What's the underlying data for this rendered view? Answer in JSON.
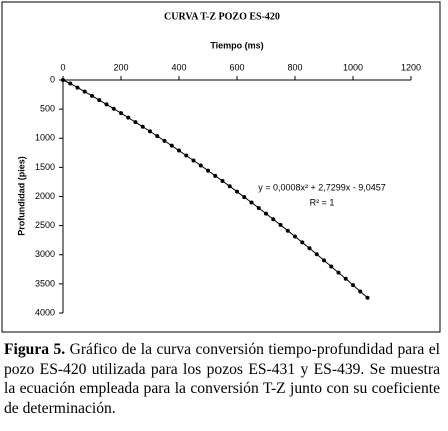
{
  "chart_data": {
    "type": "scatter",
    "title": "CURVA T-Z POZO ES-420",
    "x_label": "Tiempo (ms)",
    "y_label": "Profundidad (pies)",
    "x": [
      0,
      25,
      50,
      75,
      100,
      125,
      150,
      175,
      200,
      225,
      250,
      275,
      300,
      325,
      350,
      375,
      400,
      425,
      450,
      475,
      500,
      525,
      550,
      575,
      600,
      625,
      650,
      675,
      700,
      725,
      750,
      775,
      800,
      825,
      850,
      875,
      900,
      925,
      950,
      975,
      1000,
      1025,
      1050
    ],
    "values": [
      0,
      60,
      130,
      200,
      272,
      345,
      419,
      493,
      569,
      646,
      724,
      802,
      882,
      963,
      1045,
      1127,
      1211,
      1296,
      1382,
      1468,
      1556,
      1645,
      1734,
      1825,
      1917,
      2010,
      2103,
      2198,
      2294,
      2391,
      2488,
      2587,
      2687,
      2788,
      2889,
      2992,
      3096,
      3201,
      3306,
      3413,
      3521,
      3630,
      3739
    ],
    "color": "#000000",
    "xlim": [
      0,
      1200
    ],
    "xticks": [
      0,
      200,
      400,
      600,
      800,
      1000,
      1200
    ],
    "ylim": [
      0,
      4000
    ],
    "yticks": [
      0,
      500,
      1000,
      1500,
      2000,
      2500,
      3000,
      3500,
      4000
    ],
    "y_inverted": true,
    "x_axis_position": "top",
    "grid": false,
    "annotations": [
      "y = 0,0008x² + 2,7299x - 9,0457",
      "R² = 1"
    ]
  },
  "caption": {
    "label": "Figura 5.",
    "text": "Gráfico de la curva conversión tiempo-profundidad para el pozo ES-420 utilizada para los pozos ES-431 y ES-439. Se muestra la ecuación empleada para la conversión T-Z junto con su coeficiente de determinación."
  }
}
